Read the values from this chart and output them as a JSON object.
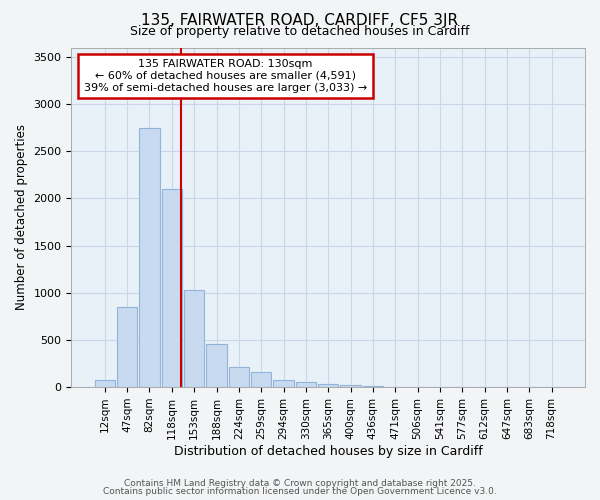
{
  "title1": "135, FAIRWATER ROAD, CARDIFF, CF5 3JR",
  "title2": "Size of property relative to detached houses in Cardiff",
  "xlabel": "Distribution of detached houses by size in Cardiff",
  "ylabel": "Number of detached properties",
  "categories": [
    "12sqm",
    "47sqm",
    "82sqm",
    "118sqm",
    "153sqm",
    "188sqm",
    "224sqm",
    "259sqm",
    "294sqm",
    "330sqm",
    "365sqm",
    "400sqm",
    "436sqm",
    "471sqm",
    "506sqm",
    "541sqm",
    "577sqm",
    "612sqm",
    "647sqm",
    "683sqm",
    "718sqm"
  ],
  "values": [
    75,
    850,
    2750,
    2100,
    1030,
    460,
    210,
    155,
    75,
    50,
    35,
    20,
    10,
    5,
    3,
    2,
    1,
    1,
    0,
    0,
    0
  ],
  "bar_color": "#c8daf0",
  "bar_edge_color": "#92b4d8",
  "grid_color": "#c8d8e8",
  "annotation_text": "135 FAIRWATER ROAD: 130sqm\n← 60% of detached houses are smaller (4,591)\n39% of semi-detached houses are larger (3,033) →",
  "annotation_box_color": "#ffffff",
  "annotation_box_edge": "#cc0000",
  "vline_color": "#cc0000",
  "vline_x": 3.42,
  "ylim": [
    0,
    3600
  ],
  "yticks": [
    0,
    500,
    1000,
    1500,
    2000,
    2500,
    3000,
    3500
  ],
  "footer1": "Contains HM Land Registry data © Crown copyright and database right 2025.",
  "footer2": "Contains public sector information licensed under the Open Government Licence v3.0.",
  "background_color": "#f2f4f5",
  "plot_bg_color": "#e8f0f8"
}
